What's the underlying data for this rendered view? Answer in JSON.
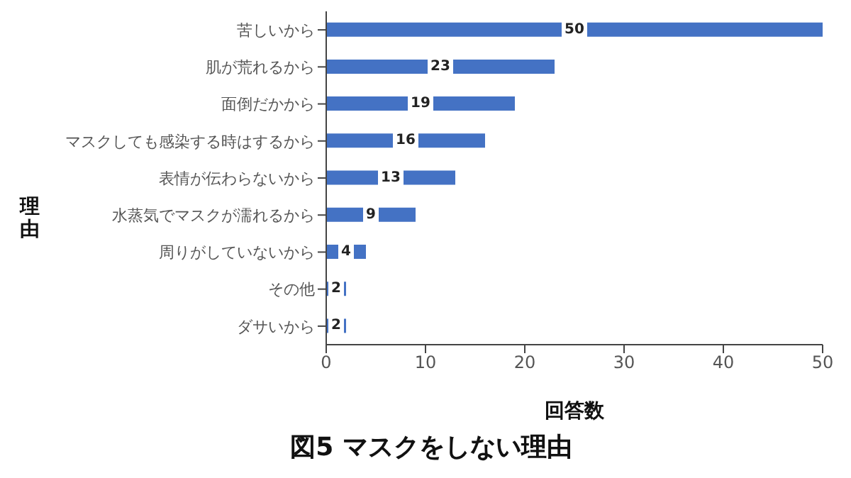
{
  "chart_data": {
    "type": "bar",
    "orientation": "horizontal",
    "title": "図5 マスクをしない理由",
    "xlabel": "回答数",
    "ylabel": "理由",
    "categories": [
      "苦しいから",
      "肌が荒れるから",
      "面倒だかから",
      "マスクしても感染する時はするから",
      "表情が伝わらないから",
      "水蒸気でマスクが濡れるから",
      "周りがしていないから",
      "その他",
      "ダサいから"
    ],
    "values": [
      50,
      23,
      19,
      16,
      13,
      9,
      4,
      2,
      2
    ],
    "color": "#4472c4",
    "xlim": [
      0,
      50
    ],
    "xticks": [
      0,
      10,
      20,
      30,
      40,
      50
    ],
    "data_labels": true
  }
}
